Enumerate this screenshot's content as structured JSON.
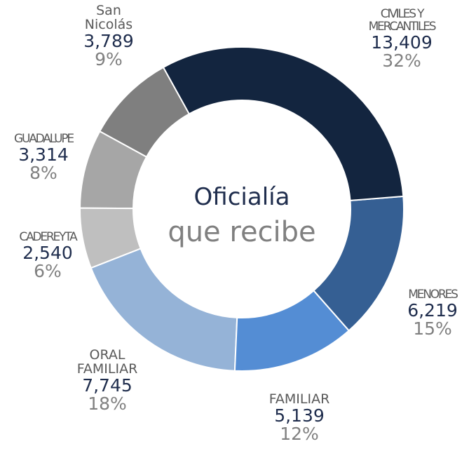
{
  "chart_data": {
    "type": "donut",
    "title": "Oficialía",
    "subtitle": "que recibe",
    "categories": [
      "CIVILES Y MERCANTILES",
      "MENORES",
      "FAMILIAR",
      "ORAL FAMILIAR",
      "CADEREYTA",
      "GUADALUPE",
      "San Nicolás"
    ],
    "values": [
      13409,
      6219,
      5139,
      7745,
      2540,
      3314,
      3789
    ],
    "value_labels": [
      "13,409",
      "6,219",
      "5,139",
      "7,745",
      "2,540",
      "3,314",
      "3,789"
    ],
    "percentages": [
      32,
      15,
      12,
      18,
      6,
      8,
      9
    ],
    "percentage_labels": [
      "32%",
      "15%",
      "12%",
      "18%",
      "6%",
      "8%",
      "9%"
    ],
    "colors": [
      "#13253f",
      "#355f93",
      "#548dd4",
      "#95b3d7",
      "#bfbfbf",
      "#a6a6a6",
      "#7f7f7f"
    ]
  }
}
